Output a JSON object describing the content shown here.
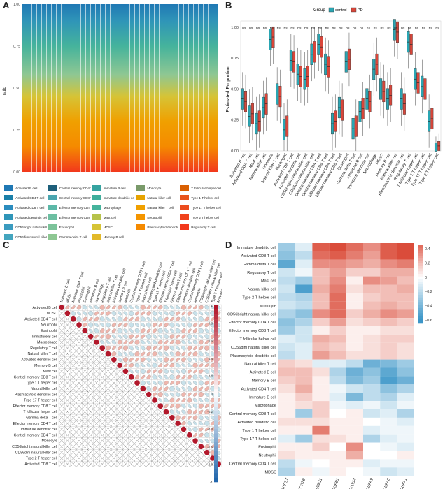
{
  "panels": {
    "a": "A",
    "b": "B",
    "c": "C",
    "d": "D"
  },
  "chart_data": [
    {
      "type": "stacked-bar",
      "panel": "A",
      "ylabel": "ratio",
      "ylim": [
        0,
        1
      ],
      "yticks": [
        "0.00",
        "0.25",
        "0.50",
        "0.75",
        "1.00"
      ],
      "n_samples": 40,
      "legend": [
        {
          "label": "Activated B cell",
          "color": "#1f78b4"
        },
        {
          "label": "Central memory CD4 T cell",
          "color": "#1d5f7a"
        },
        {
          "label": "Immature B cell",
          "color": "#35a3a0"
        },
        {
          "label": "Monocyte",
          "color": "#7a9a6a"
        },
        {
          "label": "T follicular helper cell",
          "color": "#d95f02"
        },
        {
          "label": "Activated CD4 T cell",
          "color": "#1a7fa8"
        },
        {
          "label": "Central memory CD8 T cell",
          "color": "#4aa6b0"
        },
        {
          "label": "Immature dendritic cell",
          "color": "#3fae9c"
        },
        {
          "label": "Natural killer cell",
          "color": "#e6a300"
        },
        {
          "label": "Type 1 T helper cell",
          "color": "#e8541c"
        },
        {
          "label": "Activated CD8 T cell",
          "color": "#2b8cbe"
        },
        {
          "label": "Effector memory CD4 T cell",
          "color": "#5cb8a8"
        },
        {
          "label": "Macrophage",
          "color": "#45b39c"
        },
        {
          "label": "Natural killer T cell",
          "color": "#f0a000"
        },
        {
          "label": "Type 17 T helper cell",
          "color": "#ec4c1e"
        },
        {
          "label": "Activated dendritic cell",
          "color": "#2f95b8"
        },
        {
          "label": "Effector memory CD8 T cell",
          "color": "#6dbfa2"
        },
        {
          "label": "Mast cell",
          "color": "#b7c24a"
        },
        {
          "label": "Neutrophil",
          "color": "#f49500"
        },
        {
          "label": "Type 2 T helper cell",
          "color": "#f0421c"
        },
        {
          "label": "CD56bright natural killer cell",
          "color": "#3b9bbf"
        },
        {
          "label": "Eosinophil",
          "color": "#7cc39a"
        },
        {
          "label": "MDSC",
          "color": "#d6c436"
        },
        {
          "label": "Plasmacytoid dendritic cell",
          "color": "#f58a00"
        },
        {
          "label": "Regulatory T cell",
          "color": "#f2381c"
        },
        {
          "label": "CD56dim natural killer cell",
          "color": "#44a5be"
        },
        {
          "label": "Gamma delta T cell",
          "color": "#8ec793"
        },
        {
          "label": "Memory B cell",
          "color": "#e2b92a"
        }
      ]
    },
    {
      "type": "box",
      "panel": "B",
      "ylabel": "Estimated Proportion",
      "ylim": [
        0,
        1.05
      ],
      "yticks": [
        "0.00",
        "0.25",
        "0.50",
        "0.75",
        "1.00"
      ],
      "legend_title": "Group",
      "series": [
        {
          "name": "control",
          "color": "#2aa6b3"
        },
        {
          "name": "PD",
          "color": "#d8463a"
        }
      ],
      "significance": "ns",
      "categories": [
        "Activated B cell",
        "Activated CD4 T cell",
        "Mast cell",
        "Natural killer cell",
        "Monocyte",
        "Natural killer T cell",
        "Neutrophil",
        "Activated CD8 T cell",
        "Activated dendritic cell",
        "CD56bright natural killer cell",
        "CD56dim natural killer cell",
        "Central memory CD4 T cell",
        "Central memory CD8 T cell",
        "Effector memory CD4 T cell",
        "Effector memory CD8 T cell",
        "Eosinophil",
        "Gamma delta T cell",
        "Immature B cell",
        "Immature dendritic cell",
        "Macrophage",
        "MDSC",
        "Memory B cell",
        "Natural killer cell",
        "Plasmacytoid dendritic cell",
        "Regulatory T cell",
        "T follicular helper cell",
        "Type 1 T helper cell",
        "Type 17 T helper cell",
        "Type 2 T helper cell"
      ],
      "control_median": [
        0.42,
        0.28,
        0.22,
        0.35,
        0.9,
        0.46,
        0.17,
        0.73,
        0.62,
        0.58,
        0.78,
        0.86,
        0.7,
        0.22,
        0.35,
        0.72,
        0.18,
        0.32,
        0.42,
        0.66,
        0.5,
        0.42,
        0.98,
        0.42,
        0.88,
        0.58,
        0.52,
        0.24,
        0.03
      ],
      "pd_median": [
        0.4,
        0.3,
        0.24,
        0.38,
        0.92,
        0.44,
        0.2,
        0.72,
        0.6,
        0.6,
        0.8,
        0.84,
        0.68,
        0.24,
        0.33,
        0.74,
        0.2,
        0.34,
        0.4,
        0.7,
        0.48,
        0.45,
        0.96,
        0.38,
        0.86,
        0.55,
        0.5,
        0.26,
        0.04
      ]
    },
    {
      "type": "heatmap",
      "panel": "C",
      "labels": [
        "Activated B cell",
        "MDSC",
        "Activated CD4 T cell",
        "Neutrophil",
        "Eosinophil",
        "Immature B cell",
        "Macrophage",
        "Regulatory T cell",
        "Natural killer T cell",
        "Activated dendritic cell",
        "Memory B cell",
        "Mast cell",
        "Central memory CD8 T cell",
        "Type 1 T helper cell",
        "Natural killer cell",
        "Plasmacytoid dendritic cell",
        "Type 17 T helper cell",
        "Effector memory CD8 T cell",
        "T follicular helper cell",
        "Gamma delta T cell",
        "Effector memory CD4 T cell",
        "Immature dendritic cell",
        "Central memory CD4 T cell",
        "Monocyte",
        "CD56bright natural killer cell",
        "CD56dim natural killer cell",
        "Type 2 T helper cell",
        "Activated CD8 T cell"
      ],
      "scale": [
        "1",
        "0.8",
        "0.6",
        "0.4",
        "0.2",
        "0",
        "-0.2",
        "-0.4",
        "-0.6",
        "-0.8",
        "-1"
      ]
    },
    {
      "type": "heatmap",
      "panel": "D",
      "rows": [
        "Immature dendritic cell",
        "Activated CD8 T cell",
        "Gamma delta T cell",
        "Regulatory T cell",
        "Mast cell",
        "Natural killer cell",
        "Type 2 T helper cell",
        "Monocyte",
        "CD56bright natural killer cell",
        "Effector memory CD4 T cell",
        "Effector memory CD8 T cell",
        "T follicular helper cell",
        "CD56dim natural killer cell",
        "Plasmacytoid dendritic cell",
        "Natural killer T cell",
        "Activated B cell",
        "Memory B cell",
        "Activated CD4 T cell",
        "Immature  B cell",
        "Macrophage",
        "Central memory CD8 T cell",
        "Activated dendritic cell",
        "Type 1 T helper cell",
        "Type 17 T helper cell",
        "Eosinophil",
        "Neutrophil",
        "Central memory CD4 T cell",
        "MDSC"
      ],
      "cols": [
        "NDUFS7",
        "COX7B",
        "NDUFA11",
        "NDUFB1",
        "COX14",
        "NDUFA9",
        "NDUFA8",
        "NDUFA1"
      ],
      "scale": [
        "0.4",
        "0.2",
        "0",
        "−0.2",
        "−0.4",
        "−0.6"
      ],
      "values": [
        [
          -0.3,
          -0.1,
          0.5,
          0.55,
          0.45,
          0.35,
          0.5,
          0.55
        ],
        [
          -0.35,
          -0.2,
          0.45,
          0.5,
          0.4,
          0.3,
          0.5,
          0.55
        ],
        [
          -0.5,
          -0.1,
          0.35,
          0.35,
          0.3,
          0.25,
          0.35,
          0.4
        ],
        [
          -0.15,
          -0.05,
          0.2,
          0.3,
          0.15,
          0.15,
          0.25,
          0.25
        ],
        [
          -0.2,
          -0.3,
          0.2,
          0.35,
          0.05,
          0.35,
          0.3,
          0.2
        ],
        [
          -0.15,
          -0.55,
          0.25,
          0.4,
          0.1,
          0.2,
          0.2,
          0.25
        ],
        [
          -0.2,
          -0.25,
          0.2,
          0.45,
          0.05,
          0.15,
          0.2,
          0.2
        ],
        [
          -0.15,
          -0.2,
          0.2,
          0.45,
          0.05,
          0.2,
          0.25,
          0.2
        ],
        [
          -0.25,
          -0.35,
          0.35,
          0.45,
          0.15,
          0.25,
          0.35,
          0.3
        ],
        [
          -0.35,
          -0.25,
          0.15,
          0.3,
          0.1,
          0.15,
          0.2,
          0.15
        ],
        [
          -0.3,
          -0.15,
          0.05,
          0.15,
          0.05,
          0.05,
          0.1,
          0.1
        ],
        [
          -0.1,
          -0.15,
          0.25,
          0.2,
          0.05,
          0.1,
          0.15,
          0.15
        ],
        [
          -0.15,
          -0.1,
          0.2,
          0.15,
          0.05,
          0.1,
          0.15,
          0.1
        ],
        [
          -0.2,
          -0.1,
          0.3,
          0.2,
          0.1,
          0.1,
          0.15,
          0.1
        ],
        [
          0.15,
          0.1,
          -0.1,
          -0.1,
          -0.2,
          -0.45,
          -0.4,
          -0.3
        ],
        [
          0.2,
          0.2,
          0.1,
          -0.25,
          -0.45,
          -0.35,
          -0.5,
          -0.35
        ],
        [
          0.15,
          0.2,
          0.05,
          -0.2,
          -0.4,
          -0.3,
          -0.55,
          -0.45
        ],
        [
          0.1,
          0.25,
          0.05,
          -0.05,
          -0.15,
          -0.2,
          -0.35,
          -0.25
        ],
        [
          0.05,
          0.15,
          0.05,
          -0.1,
          -0.4,
          -0.2,
          -0.25,
          -0.1
        ],
        [
          0.05,
          0.1,
          0.15,
          -0.05,
          -0.1,
          -0.05,
          -0.15,
          -0.05
        ],
        [
          0.05,
          -0.3,
          0.15,
          0.0,
          0.05,
          -0.15,
          -0.1,
          -0.25
        ],
        [
          0.1,
          0.1,
          0.1,
          0.05,
          0.05,
          0.0,
          -0.05,
          -0.1
        ],
        [
          0.05,
          0.05,
          0.4,
          0.05,
          0.05,
          -0.1,
          -0.05,
          -0.05
        ],
        [
          -0.1,
          -0.3,
          0.1,
          0.1,
          0.05,
          -0.25,
          -0.1,
          -0.05
        ],
        [
          0.05,
          0.05,
          0.15,
          0.0,
          0.35,
          0.0,
          -0.05,
          -0.1
        ],
        [
          0.1,
          0.05,
          0.05,
          0.05,
          0.25,
          0.0,
          0.0,
          0.05
        ],
        [
          -0.2,
          -0.05,
          0.0,
          0.05,
          0.05,
          -0.1,
          -0.05,
          -0.05
        ],
        [
          -0.25,
          0.05,
          -0.05,
          0.05,
          0.0,
          -0.05,
          -0.15,
          -0.1
        ]
      ]
    }
  ]
}
